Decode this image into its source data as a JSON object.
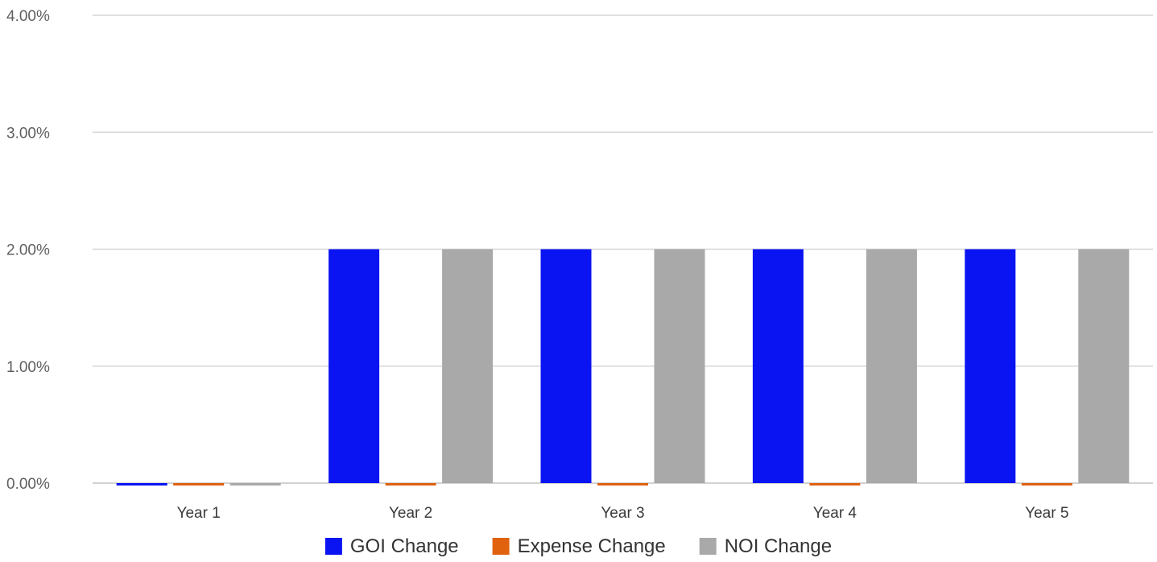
{
  "chart_data": {
    "type": "bar",
    "title": "",
    "xlabel": "",
    "ylabel": "",
    "categories": [
      "Year 1",
      "Year 2",
      "Year 3",
      "Year 4",
      "Year 5"
    ],
    "series": [
      {
        "name": "GOI Change",
        "color": "#0a14f2",
        "values": [
          0.0,
          2.0,
          2.0,
          2.0,
          2.0
        ]
      },
      {
        "name": "Expense Change",
        "color": "#e0620f",
        "values": [
          0.0,
          0.0,
          0.0,
          0.0,
          0.0
        ]
      },
      {
        "name": "NOI Change",
        "color": "#a9a9a9",
        "values": [
          0.0,
          2.0,
          2.0,
          2.0,
          2.0
        ]
      }
    ],
    "ylim": [
      0,
      4
    ],
    "yticks": [
      0,
      1,
      2,
      3,
      4
    ],
    "ytick_labels": [
      "0.00%",
      "1.00%",
      "2.00%",
      "3.00%",
      "4.00%"
    ],
    "grid": true,
    "legend_position": "bottom-center"
  }
}
